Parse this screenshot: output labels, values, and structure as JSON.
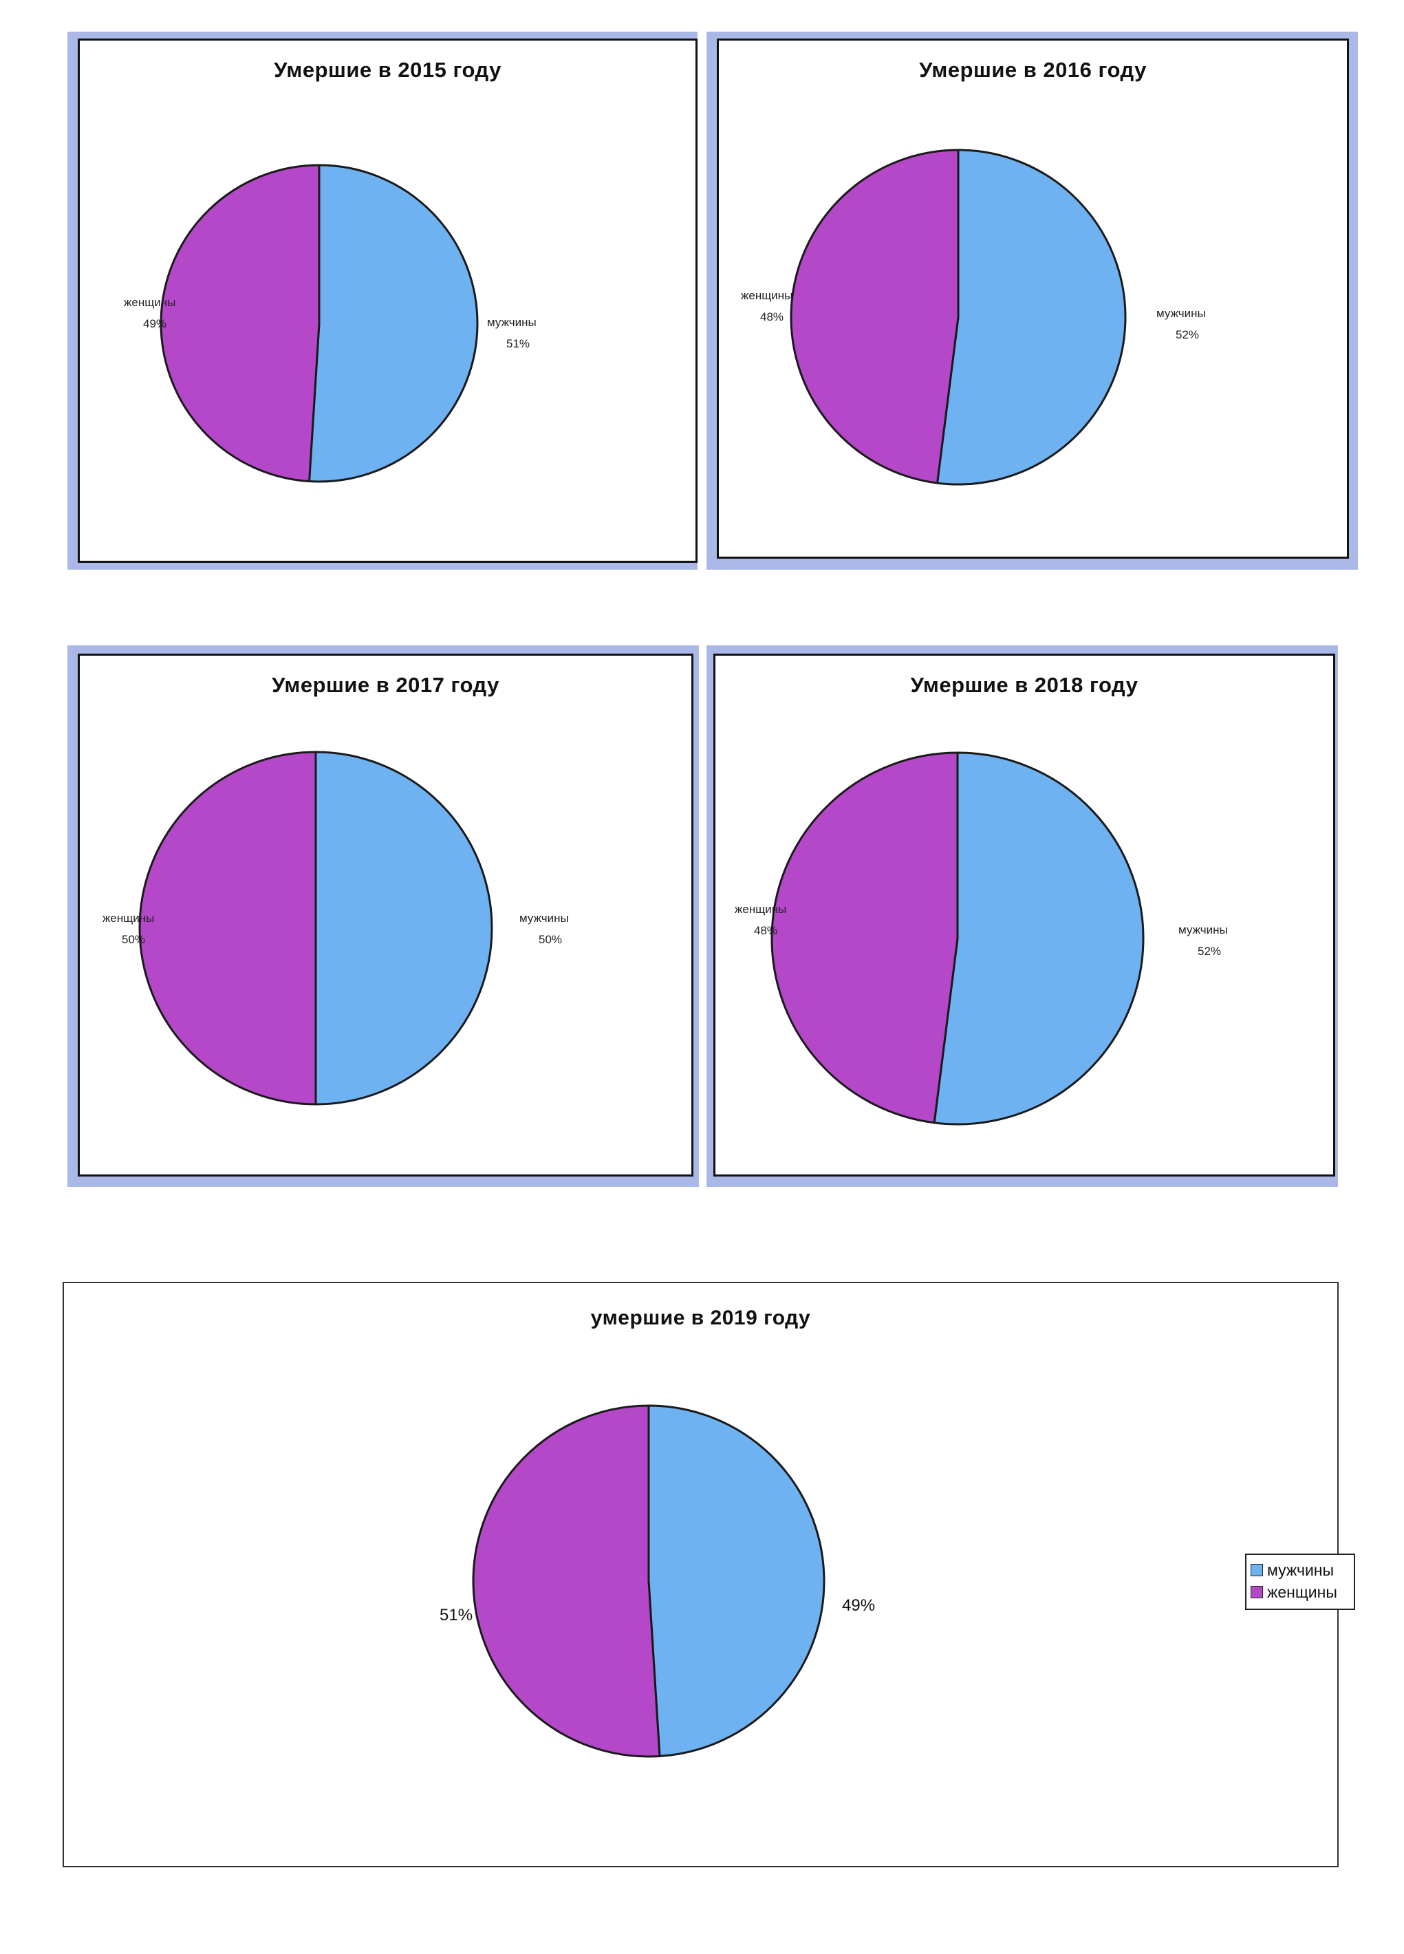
{
  "colors": {
    "men": "#6fb2f2",
    "women": "#b448c9"
  },
  "chart_data": [
    {
      "type": "pie",
      "title": "Умершие в 2015 году",
      "slices": [
        {
          "label": "мужчины",
          "value": 51,
          "value_label": "51%"
        },
        {
          "label": "женщины",
          "value": 49,
          "value_label": "49%"
        }
      ],
      "legend": false
    },
    {
      "type": "pie",
      "title": "Умершие в 2016 году",
      "slices": [
        {
          "label": "мужчины",
          "value": 52,
          "value_label": "52%"
        },
        {
          "label": "женщины",
          "value": 48,
          "value_label": "48%"
        }
      ],
      "legend": false
    },
    {
      "type": "pie",
      "title": "Умершие в 2017 году",
      "slices": [
        {
          "label": "мужчины",
          "value": 50,
          "value_label": "50%"
        },
        {
          "label": "женщины",
          "value": 50,
          "value_label": "50%"
        }
      ],
      "legend": false
    },
    {
      "type": "pie",
      "title": "Умершие в 2018 году",
      "slices": [
        {
          "label": "мужчины",
          "value": 52,
          "value_label": "52%"
        },
        {
          "label": "женщины",
          "value": 48,
          "value_label": "48%"
        }
      ],
      "legend": false
    },
    {
      "type": "pie",
      "title": "умершие в 2019 году",
      "slices": [
        {
          "label": "мужчины",
          "value": 49,
          "value_label": "49%"
        },
        {
          "label": "женщины",
          "value": 51,
          "value_label": "51%"
        }
      ],
      "legend": true,
      "legend_position": "right",
      "legend_entries": [
        "мужчины",
        "женщины"
      ]
    }
  ]
}
